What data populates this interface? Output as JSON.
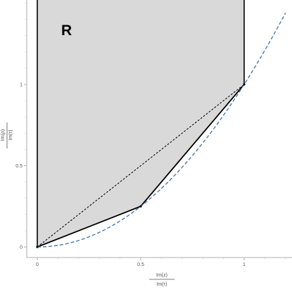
{
  "chart_data": {
    "type": "line",
    "region_label": "R",
    "xlabel": {
      "numerator": "Im(z)",
      "denominator": "Im(τ)"
    },
    "ylabel": {
      "numerator": "Im(ρ)",
      "denominator": "Im(τ)"
    },
    "x_ticks": [
      {
        "value": 0,
        "label": "0"
      },
      {
        "value": 0.5,
        "label": "0.5"
      },
      {
        "value": 1,
        "label": "1"
      }
    ],
    "y_ticks": [
      {
        "value": 0,
        "label": "0"
      },
      {
        "value": 0.5,
        "label": "0.5"
      },
      {
        "value": 1,
        "label": "1"
      }
    ],
    "xlim": [
      -0.03,
      1.2
    ],
    "ylim": [
      -0.06,
      1.52
    ],
    "region": {
      "polygon": [
        [
          0,
          0
        ],
        [
          0.5,
          0.25
        ],
        [
          1,
          1
        ],
        [
          1,
          1.6
        ],
        [
          0,
          1.6
        ]
      ],
      "fill": "#d9d9d9"
    },
    "series": [
      {
        "style": "solid",
        "color": "#000000",
        "points": [
          [
            0,
            0
          ],
          [
            0.5,
            0.25
          ],
          [
            1,
            1
          ]
        ]
      },
      {
        "style": "dashed",
        "color": "#000000",
        "points": [
          [
            0,
            0
          ],
          [
            1,
            1
          ]
        ]
      },
      {
        "style": "dashed",
        "color": "#4a78b0",
        "function": "x^2",
        "domain": [
          0,
          1.2
        ]
      }
    ]
  }
}
